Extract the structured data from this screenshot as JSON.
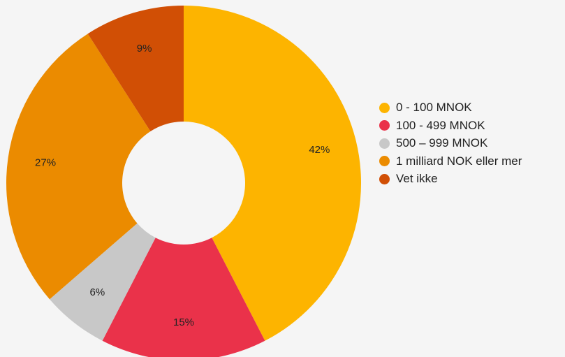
{
  "chart_data": {
    "type": "pie",
    "donut": true,
    "legend_position": "right",
    "title": "",
    "categories": [
      "0 - 100 MNOK",
      "100 - 499 MNOK",
      "500 – 999 MNOK",
      "1 milliard NOK eller mer",
      "Vet ikke"
    ],
    "values": [
      42,
      15,
      6,
      27,
      9
    ],
    "labels": [
      "42%",
      "15%",
      "6%",
      "27%",
      "9%"
    ],
    "colors": [
      "#FDB400",
      "#EA324A",
      "#C8C8C8",
      "#EB8B00",
      "#D14F05"
    ]
  }
}
